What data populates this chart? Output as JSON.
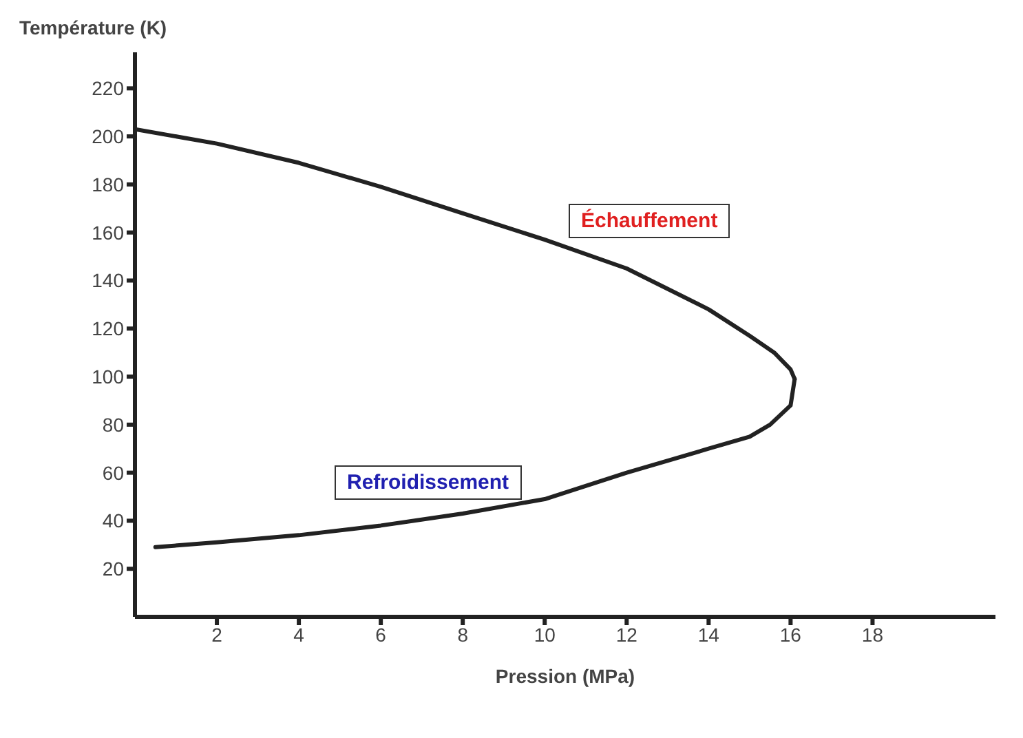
{
  "chart_data": {
    "type": "line",
    "xlabel": "Pression (MPa)",
    "ylabel": "Température (K)",
    "xlim": [
      0,
      21
    ],
    "ylim": [
      0,
      235
    ],
    "xticks": [
      2,
      4,
      6,
      8,
      10,
      12,
      14,
      16,
      18
    ],
    "yticks": [
      20,
      40,
      60,
      80,
      100,
      120,
      140,
      160,
      180,
      200,
      220
    ],
    "grid": false,
    "legend": false,
    "marker": "none",
    "line_style": "solid",
    "series": [
      {
        "color": "#222222",
        "x": [
          0,
          2,
          4,
          6,
          8,
          10,
          12,
          14,
          15,
          15.6,
          16,
          16.1
        ],
        "values": [
          203,
          197,
          189,
          179,
          168,
          157,
          145,
          128,
          117,
          110,
          103,
          99
        ]
      },
      {
        "color": "#222222",
        "x": [
          16.1,
          16,
          15.5,
          15,
          14,
          12,
          10,
          8,
          6,
          4,
          2,
          0.5
        ],
        "values": [
          99,
          88,
          80,
          75,
          70,
          60,
          49,
          43,
          38,
          34,
          31,
          29
        ]
      }
    ],
    "annotations": [
      "Échauffement",
      "Refroidissement"
    ]
  }
}
